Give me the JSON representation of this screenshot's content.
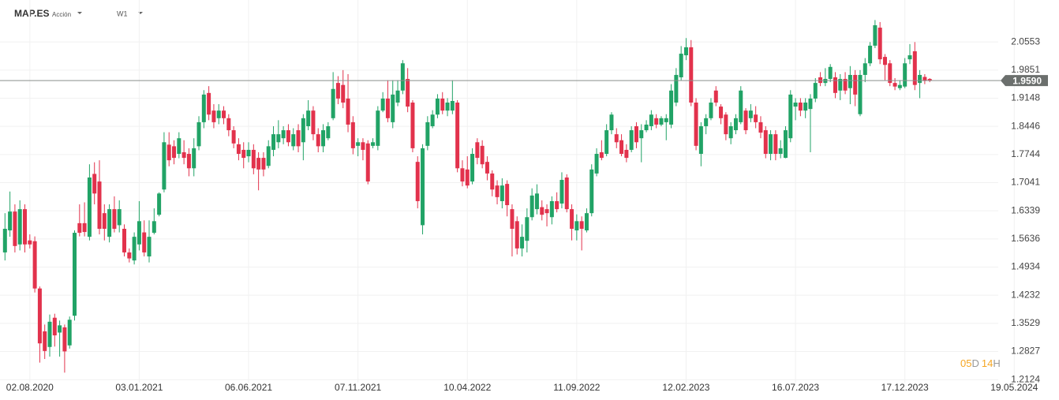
{
  "header": {
    "symbol": "MAP.ES",
    "kind": "Acción",
    "timeframe": "W1"
  },
  "countdown": [
    "05",
    "D",
    "14",
    "H"
  ],
  "chart_data": {
    "type": "candlestick",
    "up_color": "#21a366",
    "down_color": "#e2324c",
    "xlim": [
      "21.06.2020",
      "21.07.2024"
    ],
    "xticks": [
      "02.08.2020",
      "03.01.2021",
      "06.06.2021",
      "07.11.2021",
      "10.04.2022",
      "11.09.2022",
      "12.02.2023",
      "16.07.2023",
      "17.12.2023",
      "19.05.2024"
    ],
    "ylim": [
      1.205,
      2.16
    ],
    "yticks": [
      1.2124,
      1.2827,
      1.3529,
      1.4232,
      1.4934,
      1.5636,
      1.6339,
      1.7041,
      1.7744,
      1.8446,
      1.9148,
      1.9851,
      2.0553
    ],
    "grid": true,
    "current_price": {
      "value": 1.959,
      "label": "1.9590"
    },
    "x": [
      "28.06.2020",
      "05.07.2020",
      "12.07.2020",
      "19.07.2020",
      "26.07.2020",
      "02.08.2020",
      "09.08.2020",
      "16.08.2020",
      "23.08.2020",
      "30.08.2020",
      "06.09.2020",
      "13.09.2020",
      "20.09.2020",
      "27.09.2020",
      "04.10.2020",
      "11.10.2020",
      "18.10.2020",
      "25.10.2020",
      "01.11.2020",
      "08.11.2020",
      "15.11.2020",
      "22.11.2020",
      "29.11.2020",
      "06.12.2020",
      "13.12.2020",
      "20.12.2020",
      "27.12.2020",
      "03.01.2021",
      "10.01.2021",
      "17.01.2021",
      "24.01.2021",
      "31.01.2021",
      "07.02.2021",
      "14.02.2021",
      "21.02.2021",
      "28.02.2021",
      "07.03.2021",
      "14.03.2021",
      "21.03.2021",
      "28.03.2021",
      "04.04.2021",
      "11.04.2021",
      "18.04.2021",
      "25.04.2021",
      "02.05.2021",
      "09.05.2021",
      "16.05.2021",
      "23.05.2021",
      "30.05.2021",
      "06.06.2021",
      "13.06.2021",
      "20.06.2021",
      "27.06.2021",
      "04.07.2021",
      "11.07.2021",
      "18.07.2021",
      "25.07.2021",
      "01.08.2021",
      "08.08.2021",
      "15.08.2021",
      "22.08.2021",
      "29.08.2021",
      "05.09.2021",
      "12.09.2021",
      "19.09.2021",
      "26.09.2021",
      "03.10.2021",
      "10.10.2021",
      "17.10.2021",
      "24.10.2021",
      "31.10.2021",
      "07.11.2021",
      "14.11.2021",
      "21.11.2021",
      "28.11.2021",
      "05.12.2021",
      "12.12.2021",
      "19.12.2021",
      "26.12.2021",
      "02.01.2022",
      "09.01.2022",
      "16.01.2022",
      "23.01.2022",
      "30.01.2022",
      "06.02.2022",
      "13.02.2022",
      "20.02.2022",
      "27.02.2022",
      "06.03.2022",
      "13.03.2022",
      "20.03.2022",
      "27.03.2022",
      "03.04.2022",
      "10.04.2022",
      "17.04.2022",
      "24.04.2022",
      "01.05.2022",
      "08.05.2022",
      "15.05.2022",
      "22.05.2022",
      "29.05.2022",
      "05.06.2022",
      "12.06.2022",
      "19.06.2022",
      "26.06.2022",
      "03.07.2022",
      "10.07.2022",
      "17.07.2022",
      "24.07.2022",
      "31.07.2022",
      "07.08.2022",
      "14.08.2022",
      "21.08.2022",
      "28.08.2022",
      "04.09.2022",
      "11.09.2022",
      "18.09.2022",
      "25.09.2022",
      "02.10.2022",
      "09.10.2022",
      "16.10.2022",
      "23.10.2022",
      "30.10.2022",
      "06.11.2022",
      "13.11.2022",
      "20.11.2022",
      "27.11.2022",
      "04.12.2022",
      "11.12.2022",
      "18.12.2022",
      "25.12.2022",
      "01.01.2023",
      "08.01.2023",
      "15.01.2023",
      "22.01.2023",
      "29.01.2023",
      "05.02.2023",
      "12.02.2023",
      "19.02.2023",
      "26.02.2023",
      "05.03.2023",
      "12.03.2023",
      "19.03.2023",
      "26.03.2023",
      "02.04.2023",
      "09.04.2023",
      "16.04.2023",
      "23.04.2023",
      "30.04.2023",
      "07.05.2023",
      "14.05.2023",
      "21.05.2023",
      "28.05.2023",
      "04.06.2023",
      "11.06.2023",
      "18.06.2023",
      "25.06.2023",
      "02.07.2023",
      "09.07.2023",
      "16.07.2023",
      "23.07.2023",
      "30.07.2023",
      "06.08.2023",
      "13.08.2023",
      "20.08.2023",
      "27.08.2023",
      "03.09.2023",
      "10.09.2023",
      "17.09.2023",
      "24.09.2023",
      "01.10.2023",
      "08.10.2023",
      "15.10.2023",
      "22.10.2023",
      "29.10.2023",
      "05.11.2023",
      "12.11.2023",
      "19.11.2023",
      "26.11.2023",
      "03.12.2023",
      "10.12.2023",
      "17.12.2023",
      "24.12.2023",
      "31.12.2023",
      "07.01.2024",
      "14.01.2024",
      "21.01.2024"
    ],
    "open": [
      1.53,
      1.585,
      1.632,
      1.55,
      1.638,
      1.56,
      1.558,
      1.44,
      1.333,
      1.294,
      1.367,
      1.33,
      1.343,
      1.298,
      1.372,
      1.603,
      1.603,
      1.569,
      1.726,
      1.707,
      1.628,
      1.569,
      1.638,
      1.598,
      1.589,
      1.53,
      1.51,
      1.55,
      1.58,
      1.52,
      1.579,
      1.624,
      1.687,
      1.799,
      1.795,
      1.776,
      1.78,
      1.776,
      1.74,
      1.795,
      1.855,
      1.928,
      1.884,
      1.865,
      1.884,
      1.865,
      1.835,
      1.8,
      1.786,
      1.77,
      1.786,
      1.766,
      1.766,
      1.746,
      1.786,
      1.805,
      1.815,
      1.835,
      1.795,
      1.835,
      1.805,
      1.845,
      1.884,
      1.825,
      1.795,
      1.815,
      1.865,
      1.953,
      1.948,
      1.914,
      1.855,
      1.796,
      1.805,
      1.802,
      1.796,
      1.796,
      1.884,
      1.914,
      1.855,
      1.904,
      1.934,
      1.963,
      1.904,
      1.756,
      1.598,
      1.796,
      1.845,
      1.874,
      1.914,
      1.884,
      1.884,
      1.904,
      1.74,
      1.737,
      1.707,
      1.805,
      1.796,
      1.756,
      1.727,
      1.697,
      1.658,
      1.701,
      1.638,
      1.608,
      1.54,
      1.559,
      1.618,
      1.638,
      1.643,
      1.638,
      1.618,
      1.658,
      1.652,
      1.717,
      1.638,
      1.585,
      1.608,
      1.585,
      1.628,
      1.727,
      1.78,
      1.776,
      1.835,
      1.825,
      1.81,
      1.786,
      1.786,
      1.845,
      1.815,
      1.835,
      1.845,
      1.865,
      1.849,
      1.855,
      1.849,
      1.904,
      1.967,
      2.022,
      2.042,
      1.904,
      1.776,
      1.845,
      1.865,
      1.934,
      1.894,
      1.874,
      1.815,
      1.835,
      1.855,
      1.884,
      1.865,
      1.874,
      1.855,
      1.835,
      1.776,
      1.825,
      1.776,
      1.766,
      1.815,
      1.894,
      1.904,
      1.884,
      1.888,
      1.914,
      1.967,
      1.953,
      1.963,
      1.967,
      1.934,
      1.963,
      1.94,
      1.973,
      1.875,
      1.973,
      2.002,
      2.046,
      2.091,
      2.018,
      2.002,
      1.953,
      1.94,
      1.944,
      2.012,
      2.032,
      1.953,
      1.968,
      1.963
    ],
    "high": [
      1.628,
      1.682,
      1.65,
      1.66,
      1.65,
      1.575,
      1.57,
      1.445,
      1.35,
      1.375,
      1.377,
      1.36,
      1.35,
      1.37,
      1.585,
      1.65,
      1.655,
      1.75,
      1.755,
      1.76,
      1.65,
      1.65,
      1.67,
      1.66,
      1.6,
      1.54,
      1.58,
      1.658,
      1.61,
      1.61,
      1.64,
      1.68,
      1.83,
      1.83,
      1.81,
      1.83,
      1.81,
      1.79,
      1.815,
      1.87,
      1.935,
      1.945,
      1.9,
      1.9,
      1.895,
      1.875,
      1.845,
      1.815,
      1.805,
      1.805,
      1.8,
      1.78,
      1.78,
      1.81,
      1.845,
      1.86,
      1.845,
      1.85,
      1.84,
      1.85,
      1.875,
      1.91,
      1.895,
      1.84,
      1.85,
      1.855,
      1.98,
      1.97,
      1.985,
      1.975,
      1.87,
      1.815,
      1.815,
      1.81,
      1.815,
      1.895,
      1.93,
      1.96,
      1.96,
      1.96,
      2.01,
      1.99,
      1.91,
      1.77,
      1.8,
      1.87,
      1.885,
      1.925,
      1.93,
      1.915,
      1.96,
      1.91,
      1.76,
      1.77,
      1.79,
      1.815,
      1.81,
      1.77,
      1.735,
      1.71,
      1.715,
      1.71,
      1.65,
      1.62,
      1.6,
      1.64,
      1.69,
      1.7,
      1.66,
      1.65,
      1.67,
      1.68,
      1.73,
      1.725,
      1.65,
      1.625,
      1.62,
      1.64,
      1.75,
      1.79,
      1.81,
      1.85,
      1.88,
      1.84,
      1.825,
      1.8,
      1.845,
      1.855,
      1.85,
      1.86,
      1.885,
      1.875,
      1.87,
      1.875,
      1.95,
      1.99,
      2.045,
      2.065,
      2.06,
      1.915,
      1.855,
      1.875,
      1.915,
      1.945,
      1.9,
      1.88,
      1.855,
      1.875,
      1.945,
      1.89,
      1.9,
      1.895,
      1.87,
      1.845,
      1.835,
      1.835,
      1.81,
      1.845,
      1.935,
      1.915,
      1.915,
      1.915,
      1.925,
      1.965,
      1.98,
      1.99,
      2.0,
      1.98,
      1.975,
      1.98,
      1.995,
      1.985,
      1.985,
      2.015,
      2.055,
      2.11,
      2.105,
      2.025,
      2.01,
      1.965,
      1.96,
      2.015,
      2.05,
      2.055,
      1.985,
      1.975,
      1.965
    ],
    "low": [
      1.51,
      1.569,
      1.53,
      1.535,
      1.53,
      1.54,
      1.43,
      1.255,
      1.264,
      1.27,
      1.295,
      1.27,
      1.23,
      1.29,
      1.36,
      1.57,
      1.57,
      1.56,
      1.65,
      1.575,
      1.56,
      1.555,
      1.58,
      1.58,
      1.52,
      1.505,
      1.5,
      1.535,
      1.52,
      1.505,
      1.575,
      1.62,
      1.68,
      1.745,
      1.75,
      1.765,
      1.75,
      1.72,
      1.72,
      1.785,
      1.84,
      1.86,
      1.84,
      1.85,
      1.85,
      1.82,
      1.79,
      1.76,
      1.74,
      1.755,
      1.725,
      1.685,
      1.72,
      1.74,
      1.77,
      1.79,
      1.8,
      1.795,
      1.785,
      1.78,
      1.76,
      1.835,
      1.81,
      1.78,
      1.78,
      1.81,
      1.86,
      1.9,
      1.89,
      1.83,
      1.775,
      1.77,
      1.76,
      1.7,
      1.79,
      1.785,
      1.88,
      1.855,
      1.84,
      1.895,
      1.925,
      1.88,
      1.78,
      1.64,
      1.575,
      1.785,
      1.84,
      1.865,
      1.875,
      1.87,
      1.875,
      1.73,
      1.695,
      1.69,
      1.7,
      1.75,
      1.74,
      1.71,
      1.67,
      1.65,
      1.64,
      1.62,
      1.52,
      1.525,
      1.52,
      1.53,
      1.61,
      1.625,
      1.61,
      1.595,
      1.6,
      1.63,
      1.64,
      1.63,
      1.56,
      1.56,
      1.535,
      1.58,
      1.62,
      1.72,
      1.76,
      1.77,
      1.825,
      1.79,
      1.77,
      1.755,
      1.78,
      1.79,
      1.755,
      1.83,
      1.835,
      1.84,
      1.845,
      1.81,
      1.84,
      1.895,
      1.96,
      2.01,
      1.895,
      1.785,
      1.745,
      1.825,
      1.86,
      1.895,
      1.85,
      1.81,
      1.8,
      1.825,
      1.85,
      1.825,
      1.855,
      1.84,
      1.815,
      1.765,
      1.76,
      1.76,
      1.765,
      1.765,
      1.805,
      1.86,
      1.87,
      1.865,
      1.78,
      1.905,
      1.945,
      1.945,
      1.955,
      1.915,
      1.91,
      1.925,
      1.9,
      1.895,
      1.87,
      1.955,
      1.995,
      2.04,
      2.0,
      1.96,
      1.945,
      1.935,
      1.935,
      1.94,
      2.0,
      1.935,
      1.915,
      1.95,
      1.955
    ],
    "close": [
      1.589,
      1.632,
      1.546,
      1.638,
      1.55,
      1.55,
      1.44,
      1.303,
      1.284,
      1.357,
      1.323,
      1.348,
      1.283,
      1.362,
      1.579,
      1.579,
      1.581,
      1.717,
      1.677,
      1.589,
      1.589,
      1.638,
      1.589,
      1.638,
      1.53,
      1.515,
      1.569,
      1.608,
      1.53,
      1.569,
      1.608,
      1.677,
      1.805,
      1.76,
      1.766,
      1.815,
      1.766,
      1.74,
      1.79,
      1.855,
      1.924,
      1.874,
      1.855,
      1.884,
      1.865,
      1.835,
      1.802,
      1.776,
      1.766,
      1.786,
      1.74,
      1.737,
      1.737,
      1.795,
      1.825,
      1.825,
      1.835,
      1.805,
      1.825,
      1.795,
      1.865,
      1.884,
      1.825,
      1.795,
      1.835,
      1.845,
      1.938,
      1.914,
      1.904,
      1.849,
      1.79,
      1.805,
      1.786,
      1.707,
      1.805,
      1.884,
      1.914,
      1.865,
      1.924,
      1.934,
      2.002,
      1.894,
      1.79,
      1.658,
      1.79,
      1.855,
      1.874,
      1.914,
      1.884,
      1.904,
      1.908,
      1.74,
      1.707,
      1.697,
      1.776,
      1.766,
      1.75,
      1.727,
      1.687,
      1.668,
      1.697,
      1.648,
      1.589,
      1.54,
      1.569,
      1.618,
      1.672,
      1.677,
      1.624,
      1.628,
      1.658,
      1.638,
      1.711,
      1.638,
      1.589,
      1.608,
      1.589,
      1.628,
      1.737,
      1.776,
      1.766,
      1.835,
      1.874,
      1.805,
      1.776,
      1.766,
      1.835,
      1.805,
      1.835,
      1.849,
      1.874,
      1.849,
      1.865,
      1.865,
      1.934,
      1.973,
      2.026,
      2.042,
      1.904,
      1.796,
      1.845,
      1.865,
      1.904,
      1.904,
      1.865,
      1.825,
      1.845,
      1.865,
      1.934,
      1.835,
      1.884,
      1.855,
      1.829,
      1.776,
      1.825,
      1.776,
      1.79,
      1.835,
      1.924,
      1.904,
      1.884,
      1.904,
      1.914,
      1.953,
      1.953,
      1.963,
      1.993,
      1.928,
      1.963,
      1.934,
      1.973,
      1.924,
      1.973,
      2.002,
      2.046,
      2.097,
      2.012,
      1.998,
      1.953,
      1.944,
      1.948,
      2.002,
      2.022,
      1.948,
      1.973,
      1.958,
      1.959
    ]
  }
}
